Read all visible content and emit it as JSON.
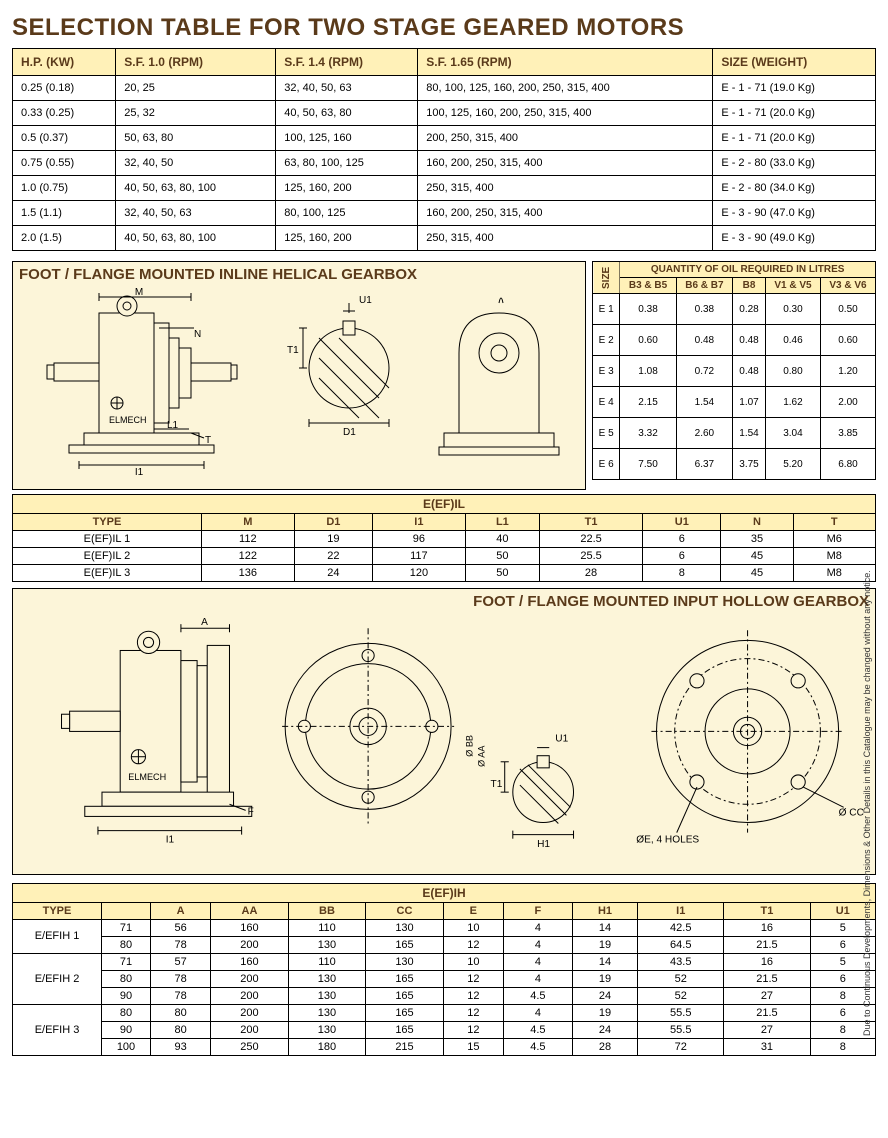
{
  "title": "SELECTION TABLE FOR TWO STAGE GEARED MOTORS",
  "selection_table": {
    "columns": [
      "H.P. (KW)",
      "S.F. 1.0 (RPM)",
      "S.F. 1.4 (RPM)",
      "S.F. 1.65 (RPM)",
      "SIZE (WEIGHT)"
    ],
    "rows": [
      [
        "0.25 (0.18)",
        "20, 25",
        "32, 40, 50, 63",
        "80, 100, 125, 160, 200, 250, 315, 400",
        "E - 1 - 71 (19.0 Kg)"
      ],
      [
        "0.33 (0.25)",
        "25, 32",
        "40, 50, 63, 80",
        "100, 125, 160, 200, 250, 315, 400",
        "E - 1 - 71 (20.0 Kg)"
      ],
      [
        "0.5 (0.37)",
        "50, 63, 80",
        "100, 125, 160",
        "200, 250, 315, 400",
        "E - 1 - 71 (20.0 Kg)"
      ],
      [
        "0.75 (0.55)",
        "32, 40, 50",
        "63, 80, 100, 125",
        "160, 200, 250, 315, 400",
        "E - 2 - 80 (33.0 Kg)"
      ],
      [
        "1.0 (0.75)",
        "40, 50, 63, 80, 100",
        "125, 160, 200",
        "250, 315, 400",
        "E - 2 - 80 (34.0 Kg)"
      ],
      [
        "1.5 (1.1)",
        "32, 40, 50, 63",
        "80, 100, 125",
        "160, 200, 250, 315, 400",
        "E - 3 - 90 (47.0 Kg)"
      ],
      [
        "2.0 (1.5)",
        "40, 50, 63, 80, 100",
        "125, 160, 200",
        "250, 315, 400",
        "E - 3 - 90 (49.0 Kg)"
      ]
    ]
  },
  "diagram1": {
    "title": "FOOT / FLANGE MOUNTED INLINE HELICAL GEARBOX",
    "brand": "ELMECH",
    "labels": {
      "m": "M",
      "u1": "U1",
      "t1": "T1",
      "d1": "D1",
      "n": "N",
      "l1": "L1",
      "t": "T",
      "i1": "I1"
    }
  },
  "oil_table": {
    "title": "QUANTITY OF OIL REQUIRED IN LITRES",
    "size_label": "SIZE",
    "columns": [
      "B3 & B5",
      "B6 & B7",
      "B8",
      "V1 & V5",
      "V3 & V6"
    ],
    "rows": [
      [
        "E 1",
        "0.38",
        "0.38",
        "0.28",
        "0.30",
        "0.50"
      ],
      [
        "E 2",
        "0.60",
        "0.48",
        "0.48",
        "0.46",
        "0.60"
      ],
      [
        "E 3",
        "1.08",
        "0.72",
        "0.48",
        "0.80",
        "1.20"
      ],
      [
        "E 4",
        "2.15",
        "1.54",
        "1.07",
        "1.62",
        "2.00"
      ],
      [
        "E 5",
        "3.32",
        "2.60",
        "1.54",
        "3.04",
        "3.85"
      ],
      [
        "E 6",
        "7.50",
        "6.37",
        "3.75",
        "5.20",
        "6.80"
      ]
    ]
  },
  "eefil_table": {
    "title": "E(EF)IL",
    "columns": [
      "TYPE",
      "M",
      "D1",
      "I1",
      "L1",
      "T1",
      "U1",
      "N",
      "T"
    ],
    "rows": [
      [
        "E(EF)IL 1",
        "112",
        "19",
        "96",
        "40",
        "22.5",
        "6",
        "35",
        "M6"
      ],
      [
        "E(EF)IL 2",
        "122",
        "22",
        "117",
        "50",
        "25.5",
        "6",
        "45",
        "M8"
      ],
      [
        "E(EF)IL 3",
        "136",
        "24",
        "120",
        "50",
        "28",
        "8",
        "45",
        "M8"
      ]
    ]
  },
  "diagram2": {
    "title": "FOOT / FLANGE MOUNTED INPUT HOLLOW GEARBOX",
    "brand": "ELMECH",
    "labels": {
      "a": "A",
      "aa": "Ø AA",
      "bb": "Ø BB",
      "cc": "Ø CC",
      "u1": "U1",
      "t1": "T1",
      "h1": "H1",
      "f": "F",
      "i1": "I1",
      "holes": "ØE, 4 HOLES"
    }
  },
  "eefih_table": {
    "title": "E(EF)IH",
    "columns": [
      "TYPE",
      "",
      "A",
      "AA",
      "BB",
      "CC",
      "E",
      "F",
      "H1",
      "I1",
      "T1",
      "U1"
    ],
    "rows": [
      {
        "type": "E/EFIH 1",
        "sub": [
          [
            "71",
            "56",
            "160",
            "110",
            "130",
            "10",
            "4",
            "14",
            "42.5",
            "16",
            "5"
          ],
          [
            "80",
            "78",
            "200",
            "130",
            "165",
            "12",
            "4",
            "19",
            "64.5",
            "21.5",
            "6"
          ]
        ]
      },
      {
        "type": "E/EFIH 2",
        "sub": [
          [
            "71",
            "57",
            "160",
            "110",
            "130",
            "10",
            "4",
            "14",
            "43.5",
            "16",
            "5"
          ],
          [
            "80",
            "78",
            "200",
            "130",
            "165",
            "12",
            "4",
            "19",
            "52",
            "21.5",
            "6"
          ],
          [
            "90",
            "78",
            "200",
            "130",
            "165",
            "12",
            "4.5",
            "24",
            "52",
            "27",
            "8"
          ]
        ]
      },
      {
        "type": "E/EFIH 3",
        "sub": [
          [
            "80",
            "80",
            "200",
            "130",
            "165",
            "12",
            "4",
            "19",
            "55.5",
            "21.5",
            "6"
          ],
          [
            "90",
            "80",
            "200",
            "130",
            "165",
            "12",
            "4.5",
            "24",
            "55.5",
            "27",
            "8"
          ],
          [
            "100",
            "93",
            "250",
            "180",
            "215",
            "15",
            "4.5",
            "28",
            "72",
            "31",
            "8"
          ]
        ]
      }
    ]
  },
  "side_note": "Due to Continuous Developments, Dimensions & Other Details in this Catalogue may be changed without any notice.",
  "colors": {
    "header_bg": "#fff1b8",
    "diagram_bg": "#fcf5d9",
    "title_color": "#5a3a1a",
    "line": "#000000"
  }
}
